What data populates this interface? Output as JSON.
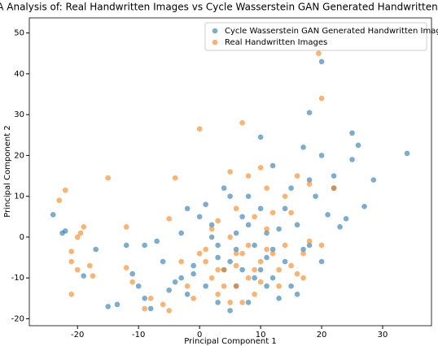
{
  "chart_data": {
    "type": "scatter",
    "title": "PCA Analysis of: Real Handwritten Images vs Cycle Wasserstein GAN Generated Handwritten Images",
    "x_label": "Principal Component 1",
    "y_label": "Principal Component 2",
    "xlim": [
      -27.9,
      38
    ],
    "ylim": [
      -21.7,
      53.7
    ],
    "xticks": [
      -20,
      -10,
      0,
      10,
      20,
      30
    ],
    "yticks": [
      -20,
      -10,
      0,
      10,
      20,
      30,
      40,
      50
    ],
    "legend": "upper right",
    "series": [
      {
        "name": "Cycle Wasserstein GAN Generated Handwritten Images",
        "color": "#1f77b4",
        "x": [
          -24,
          -22.5,
          -22,
          -19,
          -17,
          -15,
          -13.5,
          -11,
          -10,
          -9,
          -8,
          -5,
          -4,
          -3,
          -2,
          -1,
          0,
          1,
          2,
          3,
          4,
          5,
          6,
          7,
          8,
          9,
          10,
          10,
          11,
          12,
          12,
          14,
          15,
          16,
          17,
          18,
          19,
          20,
          20,
          21,
          22,
          22,
          23,
          24,
          25,
          25,
          26,
          27,
          28.5,
          34,
          18,
          17,
          20,
          18,
          15,
          13,
          8,
          5,
          3,
          1,
          -1,
          4,
          6,
          9,
          11,
          2,
          -3,
          -6,
          -7,
          -9,
          -12,
          -2,
          3,
          5,
          7,
          10,
          12,
          14,
          8,
          6,
          16,
          13,
          11
        ],
        "values": [
          5.5,
          1,
          1.5,
          -9.5,
          -3,
          -17,
          -16.5,
          -9,
          -12,
          -15,
          -17.5,
          -13,
          -11,
          -10,
          -14,
          -9,
          5,
          8,
          0,
          -5,
          12,
          10,
          -3,
          5,
          3,
          -2,
          24.5,
          7,
          -5,
          17.5,
          -10,
          7,
          12,
          3,
          -3,
          14,
          10,
          43,
          20,
          5.5,
          12,
          15,
          2.5,
          4.5,
          25.5,
          19,
          22.5,
          7.5,
          14,
          20.5,
          30.5,
          22,
          -6,
          -2,
          -12,
          -15,
          -16,
          -18,
          -16,
          -12,
          -7,
          -8,
          -12,
          -10,
          -12,
          3,
          1,
          -6,
          -1,
          -2,
          -2,
          7,
          -2,
          -6,
          -8,
          -8,
          -3,
          -6,
          10,
          1,
          -14,
          2,
          1
        ]
      },
      {
        "name": "Real Handwritten Images",
        "color": "#ff7f0e",
        "x": [
          -23,
          -22,
          -21,
          -21,
          -20,
          -21,
          -20,
          -19.5,
          -19,
          -18,
          -17.5,
          -15,
          -12,
          -12,
          -11,
          -9,
          -8,
          -6,
          -5,
          -4,
          -5,
          -3,
          -2,
          0,
          1,
          2,
          3,
          4,
          5,
          5,
          6,
          6,
          7,
          7,
          8,
          9,
          9,
          10,
          11,
          11,
          12,
          13,
          14,
          14,
          15,
          16,
          16,
          17,
          18,
          18,
          19.5,
          20,
          20,
          22,
          10,
          8,
          6,
          3,
          0,
          -1,
          4,
          8,
          12,
          13,
          3,
          5,
          7,
          9,
          11,
          15,
          17,
          2,
          6,
          10,
          1
        ],
        "values": [
          9,
          11.5,
          -3.5,
          -6,
          -8,
          -14,
          0,
          1,
          2.5,
          -7,
          -9.5,
          14.5,
          2.5,
          -7.5,
          -11,
          -17.5,
          -15,
          -16.5,
          -18,
          14.5,
          4.5,
          -6,
          -12,
          26.5,
          -3,
          -10,
          -14,
          -8,
          16,
          -16,
          7,
          -12,
          28,
          -4,
          -10,
          5,
          -14,
          -6,
          12,
          2,
          -4,
          -8,
          10,
          -2,
          6,
          15,
          -9,
          -4,
          -1,
          13,
          45,
          34,
          -2,
          12,
          17,
          15,
          -7,
          -8,
          -4,
          -15,
          -12,
          -2,
          6,
          -12,
          4,
          0,
          -16,
          -8,
          -3,
          -7,
          -10,
          2,
          -4,
          -11,
          -6
        ]
      }
    ]
  }
}
